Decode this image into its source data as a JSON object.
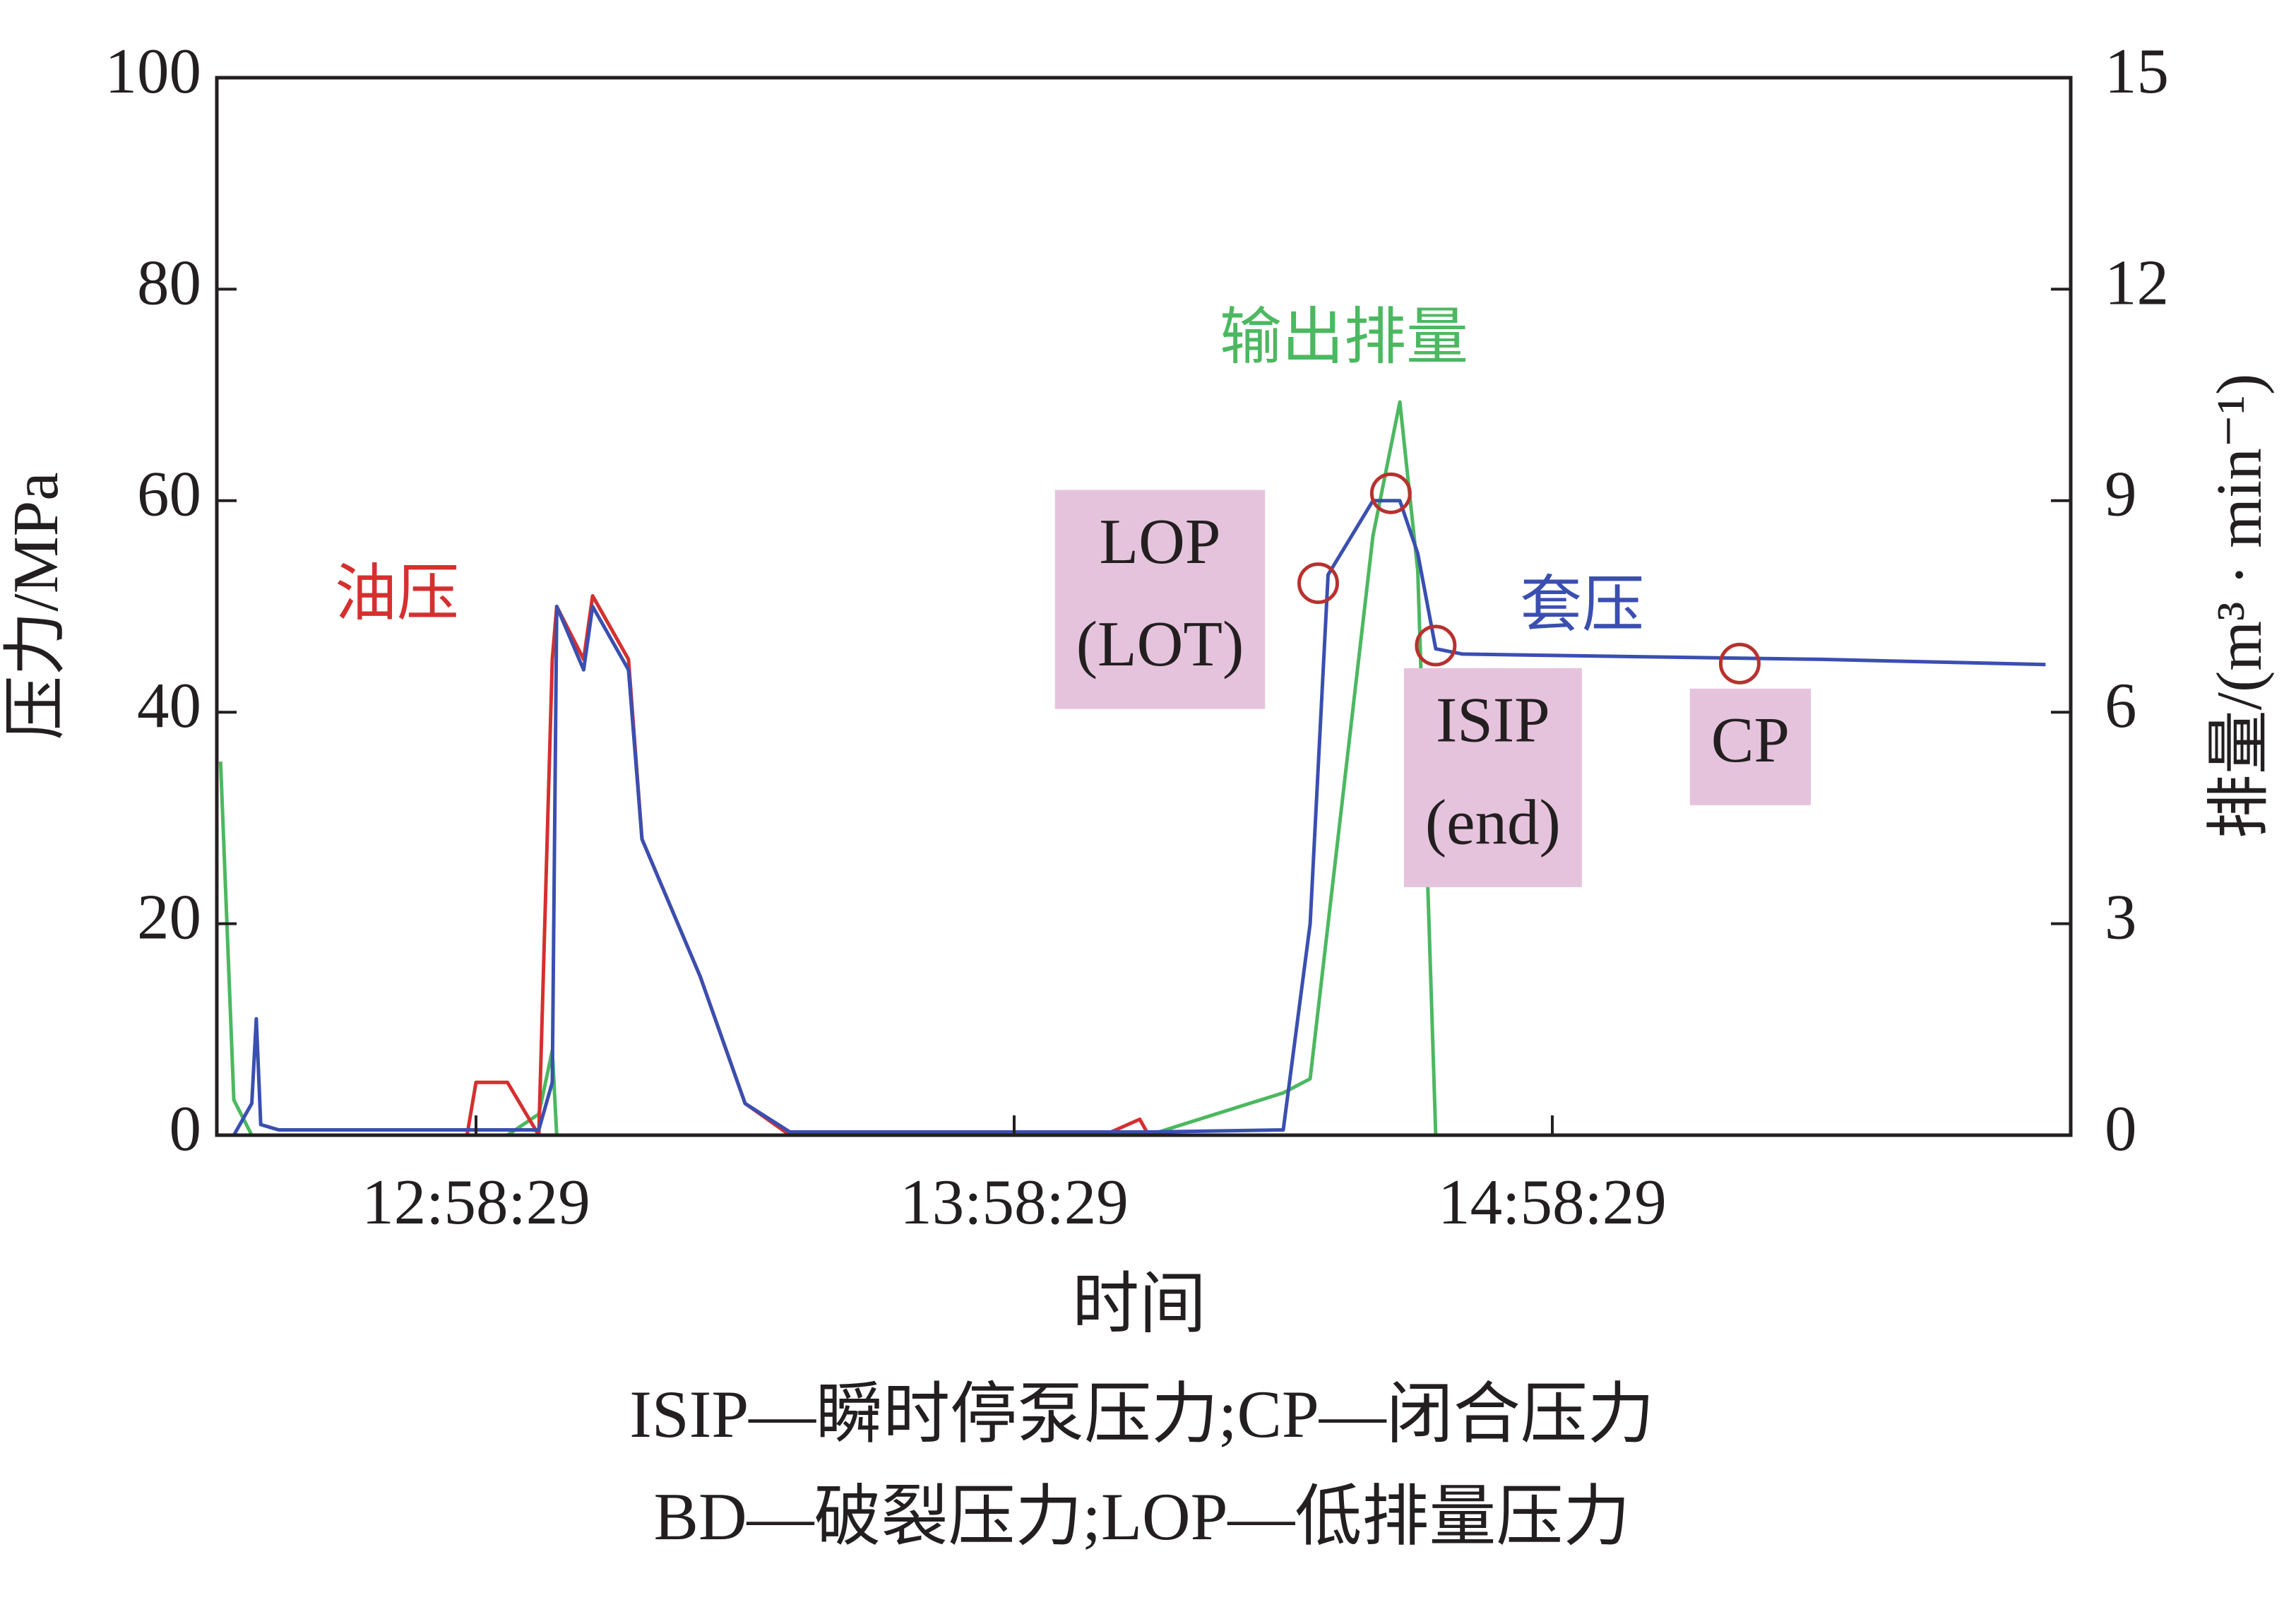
{
  "chart_data": {
    "type": "line",
    "x": [
      "12:30:00",
      "12:31:29",
      "12:33:29",
      "12:33:59",
      "12:34:29",
      "12:36:29",
      "12:38:29",
      "12:57:29",
      "12:58:29",
      "13:01:59",
      "13:05:29",
      "13:06:59",
      "13:07:29",
      "13:10:29",
      "13:11:29",
      "13:15:29",
      "13:16:59",
      "13:23:29",
      "13:28:29",
      "13:33:29",
      "14:08:29",
      "14:12:29",
      "14:13:29",
      "14:28:29",
      "14:31:29",
      "14:33:29",
      "14:38:29",
      "14:41:29",
      "14:43:29",
      "14:45:29",
      "14:48:29",
      "15:28:29",
      "15:53:29"
    ],
    "series": [
      {
        "name": "油压",
        "color": "#d62f2f",
        "values": [
          0,
          0,
          0,
          0,
          0,
          0,
          0,
          0,
          5,
          5,
          0,
          45,
          50,
          45,
          51,
          45,
          28,
          15,
          3,
          0,
          0,
          1.5,
          0,
          0,
          0,
          0,
          0,
          0,
          0,
          0,
          0,
          0,
          0
        ]
      },
      {
        "name": "套压",
        "color": "#3a4fb0",
        "values": [
          0,
          0,
          3,
          11,
          1,
          0.5,
          0.5,
          0.5,
          0.5,
          0.5,
          0.5,
          5,
          50,
          44,
          50,
          44,
          28,
          15,
          3,
          0.3,
          0.3,
          0.3,
          0.3,
          0.5,
          20,
          53,
          60,
          60,
          55,
          46,
          45.5,
          45,
          44.5
        ]
      },
      {
        "name": "输出排量",
        "color": "#4cb860",
        "axis": "y2",
        "values": [
          5.3,
          0.5,
          0,
          0,
          0,
          0,
          0,
          0,
          0,
          0,
          0.3,
          1.2,
          0,
          0,
          0,
          0,
          0,
          0,
          0,
          0,
          0,
          0,
          0,
          0.6,
          0.8,
          3,
          8.5,
          10.4,
          8,
          0,
          0,
          0,
          0
        ]
      }
    ],
    "xlim": [
      "12:29:35",
      "15:56:17"
    ],
    "xticks": [
      "12:58:29",
      "13:58:29",
      "14:58:29"
    ],
    "ylim": [
      0,
      100
    ],
    "yticks": [
      0,
      20,
      40,
      60,
      80,
      100
    ],
    "y2lim": [
      0,
      15
    ],
    "y2ticks": [
      0,
      3,
      6,
      9,
      12,
      15
    ],
    "xlabel": "时间",
    "ylabel": "压力/MPa",
    "y2label": "排量/(m³ · min⁻¹)",
    "markers": [
      {
        "x": "14:32:23",
        "y": 52.2,
        "label": [
          "LOP",
          "(LOT)"
        ]
      },
      {
        "x": "14:40:29",
        "y": 60.7
      },
      {
        "x": "14:45:29",
        "y": 46.3,
        "label": [
          "ISIP",
          "(end)"
        ]
      },
      {
        "x": "15:19:23",
        "y": 44.6,
        "label": [
          "CP"
        ]
      }
    ],
    "notes": [
      "ISIP—瞬时停泵压力;CP—闭合压力",
      "BD—破裂压力;LOP—低排量压力"
    ]
  }
}
